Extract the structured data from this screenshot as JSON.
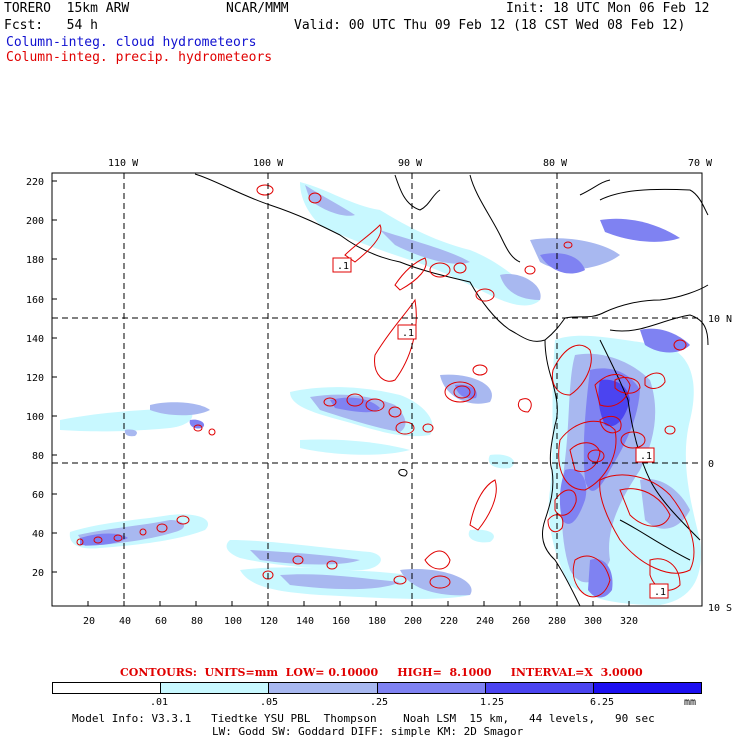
{
  "header": {
    "model": "TORERO  15km ARW",
    "center": "NCAR/MMM",
    "init": "Init: 18 UTC Mon 06 Feb 12",
    "fcst": "Fcst:   54 h",
    "valid": "Valid: 00 UTC Thu 09 Feb 12 (18 CST Wed 08 Feb 12)",
    "field1": "Column-integ. cloud hydrometeors",
    "field2": "Column-integ. precip. hydrometeors"
  },
  "colors": {
    "cloud_text": "#1010d0",
    "precip_text": "#e00000",
    "shade_1": "#c8f8ff",
    "shade_2": "#a8b8f0",
    "shade_3": "#7f82f2",
    "shade_4": "#4b44f0",
    "shade_5": "#1c0ff0"
  },
  "map": {
    "top_lon_labels": [
      "110 W",
      "100 W",
      "90 W",
      "80 W",
      "70 W"
    ],
    "right_lat_labels": [
      "10 N",
      "0",
      "10 S"
    ],
    "y_ticks": [
      "220",
      "200",
      "180",
      "160",
      "140",
      "120",
      "100",
      "80",
      "60",
      "40",
      "20"
    ],
    "x_ticks": [
      "20",
      "40",
      "60",
      "80",
      "100",
      "120",
      "140",
      "160",
      "180",
      "200",
      "220",
      "240",
      "260",
      "280",
      "300",
      "320"
    ],
    "contour_labels": [
      ".1",
      ".1",
      ".1",
      ".1"
    ]
  },
  "legend": {
    "contours": "CONTOURS:  UNITS=mm  LOW= 0.10000     HIGH=  8.1000     INTERVAL=X  3.0000",
    "bar_labels": [
      ".01",
      ".05",
      ".25",
      "1.25",
      "6.25"
    ],
    "units": "mm"
  },
  "footer": {
    "line1": "Model Info: V3.3.1   Tiedtke YSU PBL  Thompson    Noah LSM  15 km,   44 levels,   90 sec",
    "line2": "LW: Godd SW: Goddard DIFF: simple KM: 2D Smagor"
  }
}
